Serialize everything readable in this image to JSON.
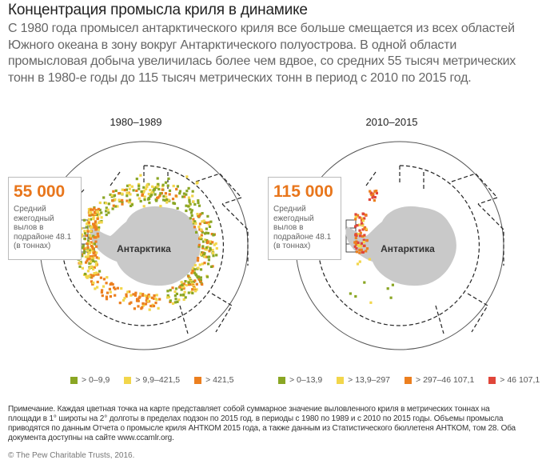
{
  "title": "Концентрация промысла криля в динамике",
  "subtitle": "С 1980 года промысел антарктического криля все больше смещается из всех областей Южного океана в зону вокруг Антарктического полуострова. В одной области промысловая добыча увеличилась более чем вдвое, со средних 55 тысяч метрических тонн в 1980-е годы до 115 тысяч метрических тонн в период с 2010 по 2015 год.",
  "maps": [
    {
      "period": "1980–1989",
      "continent_label": "Антарктика",
      "callout_value": "55 000",
      "callout_text": "Средний ежегодный вылов в подрайоне 48.1 (в тоннах)"
    },
    {
      "period": "2010–2015",
      "continent_label": "Антарктика",
      "callout_value": "115 000",
      "callout_text": "Средний ежегодный вылов в подрайоне 48.1 (в тоннах)"
    }
  ],
  "legend_left": [
    {
      "label": "> 0–9,9",
      "color": "#8aa624"
    },
    {
      "label": "> 9,9–421,5",
      "color": "#f2d64b"
    },
    {
      "label": "> 421,5",
      "color": "#ec7f1f"
    }
  ],
  "legend_right": [
    {
      "label": "> 0–13,9",
      "color": "#8aa624"
    },
    {
      "label": "> 13,9–297",
      "color": "#f2d64b"
    },
    {
      "label": "> 297–46 107,1",
      "color": "#ec7f1f"
    },
    {
      "label": "> 46 107,1",
      "color": "#e0463a"
    }
  ],
  "colors": {
    "accent_orange": "#e8761c",
    "continent": "#c9c9c9",
    "circle": "#555555"
  },
  "note": "Примечание. Каждая цветная точка на карте представляет собой суммарное значение выловленного криля в метрических тоннах на площади в 1° широты на 2° долготы в пределах подзон по 2015 год. в периоды с 1980 по 1989 и с 2010 по 2015 годы. Объемы промысла приводятся по данным Отчета о промысле криля АНТКОМ 2015 года, а также данным из Статистического бюллетеня АНТКОМ, том 28. Оба документа доступны на сайте www.ccamlr.org.",
  "credit": "© The Pew Charitable Trusts, 2016."
}
